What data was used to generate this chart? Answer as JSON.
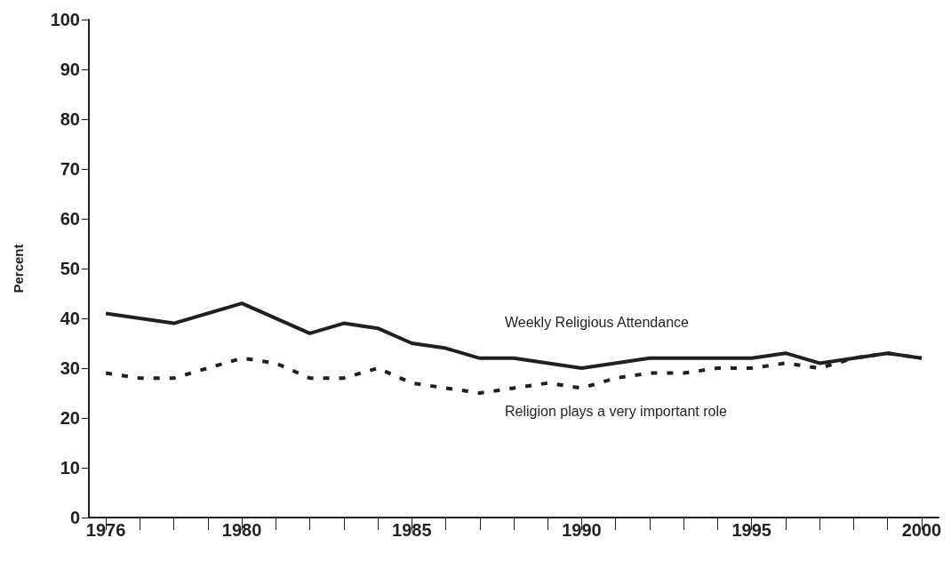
{
  "chart_data": {
    "type": "line",
    "ylabel": "Percent",
    "xlim": [
      1975.5,
      2000.5
    ],
    "ylim": [
      0,
      100
    ],
    "yticks": [
      0,
      10,
      20,
      30,
      40,
      50,
      60,
      70,
      80,
      90,
      100
    ],
    "xticks": [
      1976,
      {
        "value": 1977,
        "label": null
      },
      {
        "value": 1978,
        "label": null
      },
      {
        "value": 1979,
        "label": null
      },
      1980,
      {
        "value": 1981,
        "label": null
      },
      {
        "value": 1982,
        "label": null
      },
      {
        "value": 1983,
        "label": null
      },
      {
        "value": 1984,
        "label": null
      },
      1985,
      {
        "value": 1986,
        "label": null
      },
      {
        "value": 1987,
        "label": null
      },
      {
        "value": 1988,
        "label": null
      },
      {
        "value": 1989,
        "label": null
      },
      1990,
      {
        "value": 1991,
        "label": null
      },
      {
        "value": 1992,
        "label": null
      },
      {
        "value": 1993,
        "label": null
      },
      {
        "value": 1994,
        "label": null
      },
      1995,
      {
        "value": 1996,
        "label": null
      },
      {
        "value": 1997,
        "label": null
      },
      {
        "value": 1998,
        "label": null
      },
      {
        "value": 1999,
        "label": null
      },
      2000
    ],
    "grid": false,
    "legend": false,
    "marker": "none",
    "series": [
      {
        "name": "Weekly Religious Attendance",
        "color": "#231f20",
        "line_style": "solid",
        "x": [
          1976,
          1978,
          1980,
          1982,
          1983,
          1984,
          1985,
          1986,
          1987,
          1988,
          1990,
          1992,
          1993,
          1994,
          1995,
          1996,
          1997,
          1999,
          2000
        ],
        "values": [
          41,
          39,
          43,
          37,
          39,
          38,
          35,
          34,
          32,
          32,
          30,
          32,
          32,
          32,
          32,
          33,
          31,
          33,
          32
        ]
      },
      {
        "name": "Religion plays a very important role",
        "color": "#231f20",
        "line_style": "dashed",
        "x": [
          1976,
          1977,
          1978,
          1979,
          1980,
          1981,
          1982,
          1983,
          1984,
          1985,
          1986,
          1987,
          1988,
          1989,
          1990,
          1991,
          1992,
          1993,
          1994,
          1995,
          1996,
          1997,
          1998,
          1999,
          2000
        ],
        "values": [
          29,
          28,
          28,
          30,
          32,
          31,
          28,
          28,
          30,
          27,
          26,
          25,
          26,
          27,
          26,
          28,
          29,
          29,
          30,
          30,
          31,
          30,
          32,
          33,
          32
        ]
      }
    ]
  }
}
